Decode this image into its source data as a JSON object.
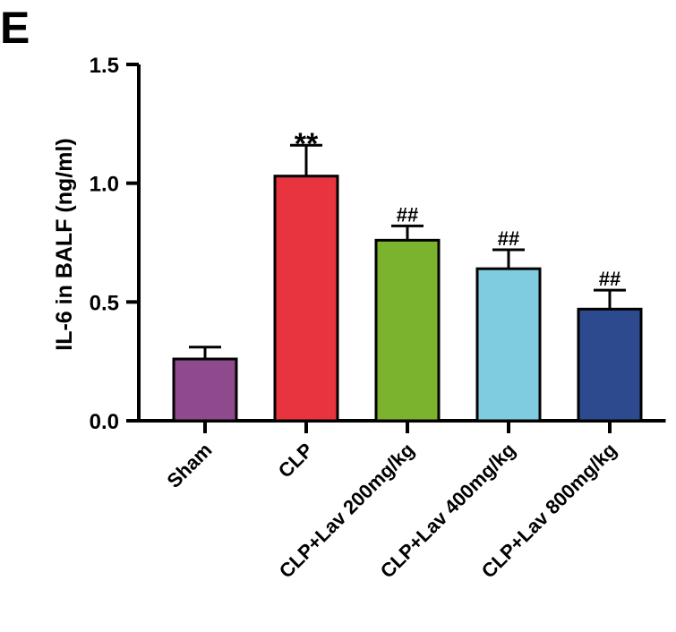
{
  "panel_label": "E",
  "chart_data": {
    "type": "bar",
    "title": "",
    "xlabel": "",
    "ylabel": "IL-6 in BALF (ng/ml)",
    "ylim": [
      0,
      1.5
    ],
    "yticks": [
      "0.0",
      "0.5",
      "1.0",
      "1.5"
    ],
    "categories": [
      "Sham",
      "CLP",
      "CLP+Lav 200mg/kg",
      "CLP+Lav 400mg/kg",
      "CLP+Lav 800mg/kg"
    ],
    "values": [
      0.26,
      1.03,
      0.76,
      0.64,
      0.47
    ],
    "errors": [
      0.05,
      0.13,
      0.06,
      0.08,
      0.08
    ],
    "significance": [
      "",
      "**",
      "##",
      "##",
      "##"
    ],
    "colors": [
      "#8e4a8d",
      "#e8343f",
      "#7bb32e",
      "#7fcbe0",
      "#2e4a8f"
    ],
    "grid": false,
    "legend": "none"
  }
}
